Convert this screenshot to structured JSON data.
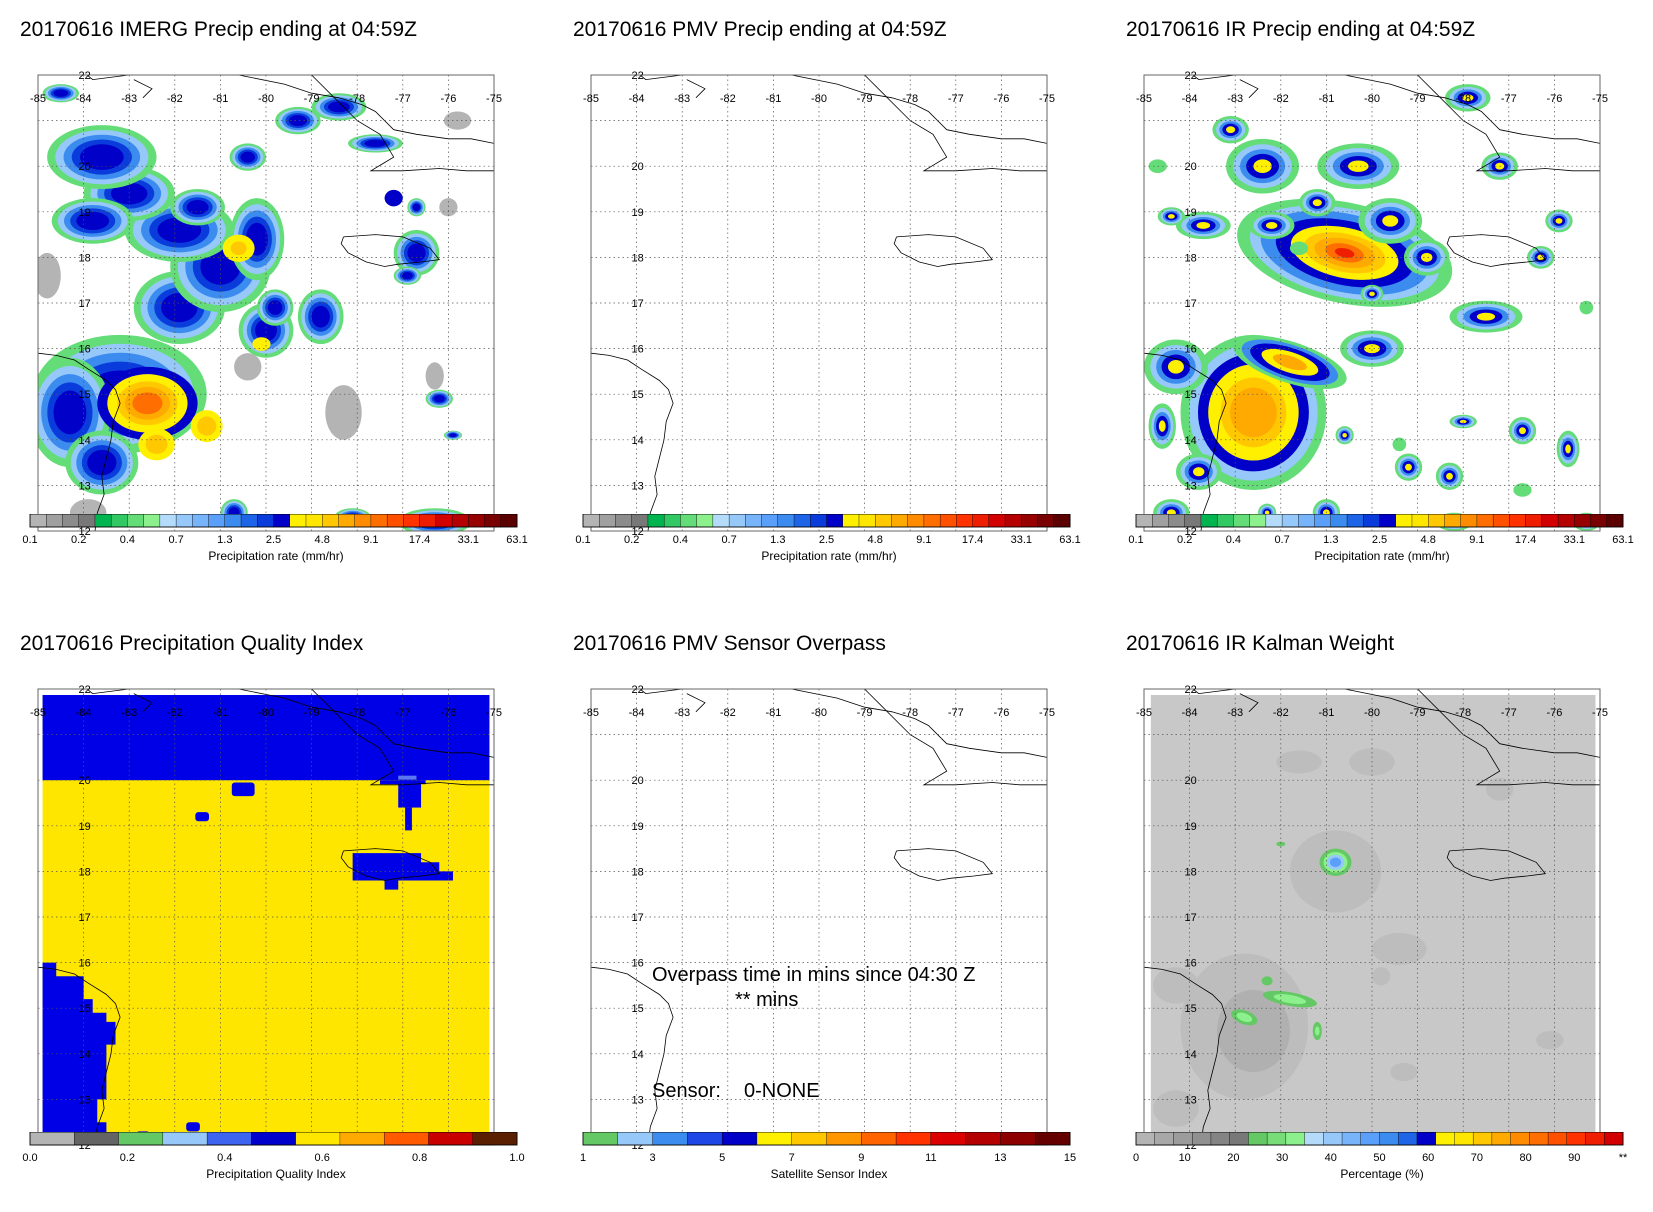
{
  "panels": [
    {
      "id": "imerg",
      "title": "20170616 IMERG Precip ending at 04:59Z",
      "kind": "precip",
      "colorbar": {
        "title": "Precipitation rate (mm/hr)",
        "labels": [
          "0.1",
          "0.2",
          "0.4",
          "0.7",
          "1.3",
          "2.5",
          "4.8",
          "9.1",
          "17.4",
          "33.1",
          "63.1"
        ]
      }
    },
    {
      "id": "pmv",
      "title": "20170616 PMV Precip ending at 04:59Z",
      "kind": "empty",
      "colorbar": {
        "title": "Precipitation rate (mm/hr)",
        "labels": [
          "0.1",
          "0.2",
          "0.4",
          "0.7",
          "1.3",
          "2.5",
          "4.8",
          "9.1",
          "17.4",
          "33.1",
          "63.1"
        ]
      }
    },
    {
      "id": "ir",
      "title": "20170616 IR Precip ending at 04:59Z",
      "kind": "precip",
      "colorbar": {
        "title": "Precipitation rate (mm/hr)",
        "labels": [
          "0.1",
          "0.2",
          "0.4",
          "0.7",
          "1.3",
          "2.5",
          "4.8",
          "9.1",
          "17.4",
          "33.1",
          "63.1"
        ]
      }
    },
    {
      "id": "pqi",
      "title": "20170616 Precipitation Quality Index",
      "kind": "pqi",
      "colorbar": {
        "title": "Precipitation Quality Index",
        "labels": [
          "0.0",
          "0.2",
          "0.4",
          "0.6",
          "0.8",
          "1.0"
        ]
      }
    },
    {
      "id": "overpass",
      "title": "20170616 PMV Sensor Overpass",
      "kind": "overpass",
      "overpass_text": "Overpass time in mins since 04:30 Z",
      "overpass_value": "** mins",
      "sensor_label": "Sensor:",
      "sensor_value": "0-NONE",
      "colorbar": {
        "title": "Satellite Sensor Index",
        "labels": [
          "1",
          "3",
          "5",
          "7",
          "9",
          "11",
          "13",
          "15"
        ]
      }
    },
    {
      "id": "kalman",
      "title": "20170616 IR Kalman Weight",
      "kind": "kalman",
      "colorbar": {
        "title": "Percentage (%)",
        "labels": [
          "0",
          "10",
          "20",
          "30",
          "40",
          "50",
          "60",
          "70",
          "80",
          "90",
          "**"
        ]
      }
    }
  ],
  "chart_data": [
    {
      "type": "heatmap",
      "title": "20170616 IMERG Precip ending at 04:59Z",
      "variable": "Precipitation rate (mm/hr)",
      "lon_range": [
        -85,
        -75
      ],
      "lat_range": [
        12,
        22
      ],
      "lon_ticks": [
        "-85",
        "-84",
        "-83",
        "-82",
        "-81",
        "-80",
        "-79",
        "-78",
        "-77",
        "-76",
        "-75"
      ],
      "lat_ticks": [
        "22",
        "20",
        "19",
        "18",
        "17",
        "16",
        "15",
        "14",
        "13",
        "12"
      ],
      "grid": true,
      "features": [
        {
          "lon": -82.4,
          "lat": 14.8,
          "max_value": 9.1
        },
        {
          "lon": -80.6,
          "lat": 18.2,
          "max_value": 4.8
        },
        {
          "lon": -80.0,
          "lat": 16.1,
          "max_value": 4.8
        }
      ]
    },
    {
      "type": "heatmap",
      "title": "20170616 PMV Precip ending at 04:59Z",
      "variable": "Precipitation rate (mm/hr)",
      "lon_range": [
        -85,
        -75
      ],
      "lat_range": [
        12,
        22
      ],
      "grid": true,
      "features": []
    },
    {
      "type": "heatmap",
      "title": "20170616 IR Precip ending at 04:59Z",
      "variable": "Precipitation rate (mm/hr)",
      "lon_range": [
        -85,
        -75
      ],
      "lat_range": [
        12,
        22
      ],
      "grid": true,
      "features": [
        {
          "lon": -80.8,
          "lat": 18.2,
          "max_value": 33.1
        },
        {
          "lon": -82.8,
          "lat": 14.5,
          "max_value": 9.1
        },
        {
          "lon": -82.3,
          "lat": 15.5,
          "max_value": 9.1
        }
      ]
    },
    {
      "type": "heatmap",
      "title": "20170616 Precipitation Quality Index",
      "variable": "Precipitation Quality Index",
      "lon_range": [
        -85,
        -75
      ],
      "lat_range": [
        12,
        22
      ],
      "grid": true,
      "regions": [
        {
          "description": "northern strip",
          "lat_min": 20.0,
          "lat_max": 22,
          "value": 0.5
        },
        {
          "description": "main area",
          "value": 0.6
        },
        {
          "description": "south-west block",
          "lon_max": -83.2,
          "lat_max": 16.0,
          "value": 0.5
        },
        {
          "description": "east block near Jamaica",
          "lon_min": -78.1,
          "lon_max": -75.9,
          "lat_min": 17.7,
          "lat_max": 18.4,
          "value": 0.5
        }
      ]
    },
    {
      "type": "heatmap",
      "title": "20170616 PMV Sensor Overpass",
      "variable": "Satellite Sensor Index",
      "lon_range": [
        -85,
        -75
      ],
      "lat_range": [
        12,
        22
      ],
      "grid": true,
      "sensor": "0-NONE"
    },
    {
      "type": "heatmap",
      "title": "20170616 IR Kalman Weight",
      "variable": "Percentage (%)",
      "lon_range": [
        -85,
        -75
      ],
      "lat_range": [
        12,
        22
      ],
      "grid": true,
      "background_value": 5,
      "features": [
        {
          "lon": -80.8,
          "lat": 18.3,
          "max_value": 40
        },
        {
          "lon": -82.9,
          "lat": 14.8,
          "max_value": 25
        }
      ]
    }
  ],
  "colors": {
    "precip_scale": [
      "#b4b4b4",
      "#a0a0a0",
      "#8c8c8c",
      "#787878",
      "#00b450",
      "#32c864",
      "#64dc78",
      "#8cf08c",
      "#b4dcfa",
      "#96c8fa",
      "#78b4fa",
      "#5aa0fa",
      "#3c8cf0",
      "#1e64e6",
      "#0a3cdc",
      "#0000c8",
      "#fff000",
      "#ffe600",
      "#ffc800",
      "#ffaa00",
      "#ff8c00",
      "#ff6e00",
      "#ff5000",
      "#ff3200",
      "#f01e00",
      "#d20000",
      "#b40000",
      "#960000",
      "#780000",
      "#5a0000"
    ],
    "pqi_scale": [
      "#b4b4b4",
      "#646464",
      "#64c864",
      "#96c8fa",
      "#3c64f0",
      "#0000cd",
      "#ffe600",
      "#ffaa00",
      "#ff5a00",
      "#c80000",
      "#5a1e00"
    ],
    "sensor_scale": [
      "#64c864",
      "#96c8fa",
      "#3c8cf0",
      "#1e46e6",
      "#0000c8",
      "#fff000",
      "#ffc800",
      "#ff9600",
      "#ff6400",
      "#ff3200",
      "#dc0000",
      "#b40000",
      "#8c0000",
      "#640000"
    ],
    "kalman_scale": [
      "#b4b4b4",
      "#a8a8a8",
      "#9c9c9c",
      "#909090",
      "#848484",
      "#787878",
      "#64c864",
      "#78dc78",
      "#8cf08c",
      "#b4dcfa",
      "#96c8fa",
      "#78b4fa",
      "#5aa0fa",
      "#3c8cf0",
      "#1e64e6",
      "#0000c8",
      "#fff000",
      "#ffe600",
      "#ffc800",
      "#ffaa00",
      "#ff8c00",
      "#ff6e00",
      "#ff5000",
      "#ff3200",
      "#f01e00",
      "#d20000"
    ],
    "pqi_blue": "#0000e6",
    "pqi_yellow": "#ffe600",
    "kalman_gray": "#c8c8c8"
  }
}
